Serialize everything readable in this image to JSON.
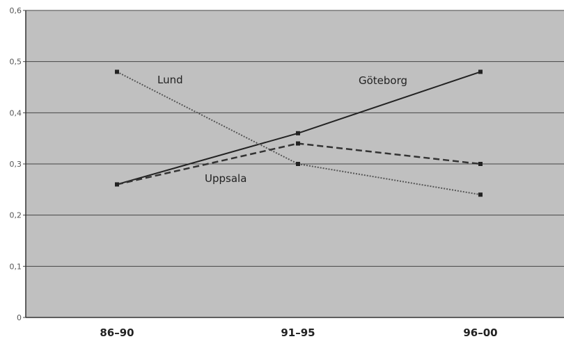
{
  "chart_data": {
    "type": "line",
    "title": "",
    "xlabel": "",
    "ylabel": "",
    "categories": [
      "86–90",
      "91–95",
      "96–00"
    ],
    "ylim": [
      0,
      0.6
    ],
    "yticks": [
      "0",
      "0,1",
      "0,2",
      "0,3",
      "0,4",
      "0,5",
      "0,6"
    ],
    "grid": true,
    "legend": "none",
    "series": [
      {
        "name": "Göteborg",
        "values": [
          0.26,
          0.36,
          0.48
        ],
        "style": "solid",
        "color": "#222222"
      },
      {
        "name": "Uppsala",
        "values": [
          0.26,
          0.34,
          0.3
        ],
        "style": "dashed",
        "color": "#333333"
      },
      {
        "name": "Lund",
        "values": [
          0.48,
          0.3,
          0.24
        ],
        "style": "dotted",
        "color": "#555555"
      }
    ],
    "colors": {
      "plot_background": "#c0c0c0",
      "gridline": "#444444"
    }
  }
}
